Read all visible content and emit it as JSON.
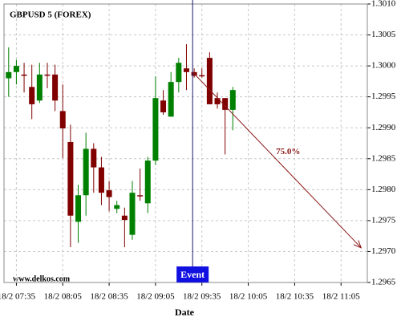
{
  "chart_data": {
    "type": "candlestick",
    "title": "GBPUSD 5 (FOREX)",
    "watermark": "www.delkos.com",
    "x_label": "Date",
    "up_color": "#008000",
    "down_color": "#800000",
    "grid": true,
    "x": [
      "18/2 07:30",
      "18/2 07:35",
      "18/2 07:40",
      "18/2 07:45",
      "18/2 07:50",
      "18/2 07:55",
      "18/2 08:00",
      "18/2 08:05",
      "18/2 08:10",
      "18/2 08:15",
      "18/2 08:20",
      "18/2 08:25",
      "18/2 08:30",
      "18/2 08:35",
      "18/2 08:40",
      "18/2 08:45",
      "18/2 08:50",
      "18/2 08:55",
      "18/2 09:00",
      "18/2 09:05",
      "18/2 09:10",
      "18/2 09:15",
      "18/2 09:20",
      "18/2 09:25",
      "18/2 09:30",
      "18/2 09:35",
      "18/2 09:40",
      "18/2 09:45",
      "18/2 09:50",
      "18/2 09:55"
    ],
    "open": [
      1.2998,
      1.2999,
      1.29986,
      1.29966,
      1.29944,
      1.29986,
      1.29986,
      1.29927,
      1.29877,
      1.29748,
      1.29791,
      1.29866,
      1.29836,
      1.29799,
      1.29769,
      1.29758,
      1.29727,
      1.29791,
      1.29778,
      1.29847,
      1.29944,
      1.29918,
      1.29974,
      1.29996,
      1.2999,
      1.29985,
      1.30013,
      1.29948,
      1.29948,
      1.29929
    ],
    "high": [
      1.3003,
      1.3001,
      1.30005,
      1.30002,
      1.30005,
      1.30005,
      1.30002,
      1.2997,
      1.29905,
      1.29808,
      1.29892,
      1.29875,
      1.29853,
      1.29814,
      1.29782,
      1.29771,
      1.29814,
      1.29834,
      1.29853,
      1.29983,
      1.29961,
      1.2999,
      1.30013,
      1.30035,
      1.29996,
      1.29996,
      1.30022,
      1.29957,
      1.29948,
      1.29966
    ],
    "low": [
      1.2995,
      1.2997,
      1.29957,
      1.29914,
      1.2994,
      1.29964,
      1.29927,
      1.29851,
      1.29707,
      1.29714,
      1.29758,
      1.29795,
      1.29775,
      1.29765,
      1.29762,
      1.29707,
      1.29719,
      1.29782,
      1.29762,
      1.2984,
      1.29921,
      1.29918,
      1.29957,
      1.29961,
      1.29981,
      1.29981,
      1.29938,
      1.29931,
      1.29857,
      1.29896
    ],
    "close": [
      1.2999,
      1.3,
      1.29985,
      1.29938,
      1.29986,
      1.29985,
      1.29944,
      1.29899,
      1.29758,
      1.29791,
      1.29866,
      1.29836,
      1.29795,
      1.29788,
      1.29775,
      1.29751,
      1.29795,
      1.2979,
      1.29847,
      1.29948,
      1.29925,
      1.29974,
      1.30005,
      1.2999,
      1.29984,
      1.29984,
      1.29938,
      1.29938,
      1.29929,
      1.29961
    ],
    "xlim": [
      "18/2 07:27",
      "18/2 11:22"
    ],
    "xticks": [
      "18/2 07:35",
      "18/2 08:05",
      "18/2 08:35",
      "18/2 09:05",
      "18/2 09:35",
      "18/2 10:05",
      "18/2 10:35",
      "18/2 11:05"
    ],
    "ylim": [
      1.2965,
      1.301
    ],
    "yticks": [
      {
        "value": 1.2965,
        "label": "1.2965"
      },
      {
        "value": 1.297,
        "label": "1.2970"
      },
      {
        "value": 1.2975,
        "label": "1.2975"
      },
      {
        "value": 1.298,
        "label": "1.2980"
      },
      {
        "value": 1.2985,
        "label": "1.2985"
      },
      {
        "value": 1.299,
        "label": "1.2990"
      },
      {
        "value": 1.2995,
        "label": "1.2995"
      },
      {
        "value": 1.3,
        "label": "1.3000"
      },
      {
        "value": 1.3005,
        "label": "1.3005"
      },
      {
        "value": 1.301,
        "label": "1.3010"
      }
    ],
    "event": {
      "x": "18/2 09:29",
      "label": "Event",
      "color": "#1010e0"
    },
    "arrow": {
      "x": [
        "18/2 09:29",
        "18/2 11:18"
      ],
      "y": [
        1.2999,
        1.29706
      ],
      "label": "75.0%",
      "color": "#8b1a1a"
    }
  }
}
